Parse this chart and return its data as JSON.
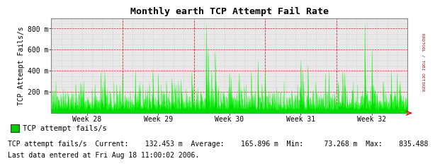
{
  "title": "Monthly earth TCP Attempt Fail Rate",
  "ylabel": "TCP Attempt Fails/s",
  "xlabel_ticks": [
    "Week 28",
    "Week 29",
    "Week 30",
    "Week 31",
    "Week 32"
  ],
  "ytick_labels": [
    "200 m",
    "400 m",
    "600 m",
    "800 m"
  ],
  "ytick_values": [
    200,
    400,
    600,
    800
  ],
  "ymax": 900,
  "ymin": 0,
  "line_color": "#00FF00",
  "fill_color": "#00DD00",
  "bg_color": "#FFFFFF",
  "plot_bg_color": "#E8E8E8",
  "red_grid_color": "#CC0000",
  "gray_grid_color": "#BBBBBB",
  "legend_label": "TCP attempt fails/s",
  "legend_color": "#00CC00",
  "stats_line": "TCP attempt fails/s  Current:    132.453 m  Average:    165.896 m  Min:     73.268 m  Max:    835.488",
  "footer_line": "Last data entered at Fri Aug 18 11:00:02 2006.",
  "right_label": "RRDTOOL / TOBI OETIKER",
  "num_points": 2000,
  "avg": 165.896,
  "min_val": 73.268,
  "max_val": 835.488,
  "current": 132.453
}
